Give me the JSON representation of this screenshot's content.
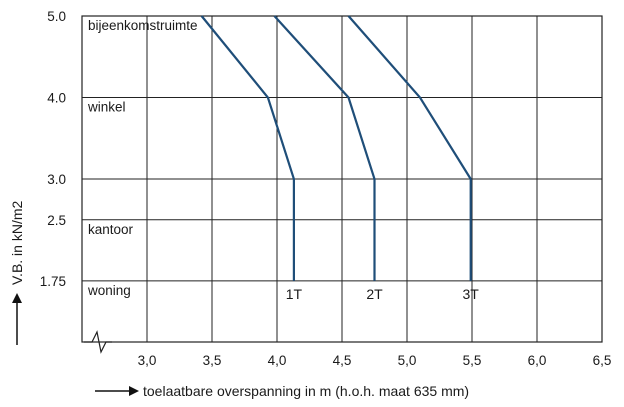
{
  "chart_data": {
    "type": "line",
    "xlabel": "toelaatbare overspanning in m (h.o.h. maat 635 mm)",
    "ylabel": "V.B. in kN/m2",
    "x_ticks": [
      "3,0",
      "3,5",
      "4,0",
      "4,5",
      "5,0",
      "5,5",
      "6,0",
      "6,5"
    ],
    "x_tick_values": [
      3.0,
      3.5,
      4.0,
      4.5,
      5.0,
      5.5,
      6.0,
      6.5
    ],
    "y_ticks": [
      "5.0",
      "4.0",
      "3.0",
      "2.5",
      "1.75"
    ],
    "y_tick_values": [
      5.0,
      4.0,
      3.0,
      2.5,
      1.75
    ],
    "xlim": [
      2.5,
      6.5
    ],
    "ylim": [
      1.0,
      5.0
    ],
    "grid": true,
    "categories": [
      {
        "label": "bijeenkomstruimte",
        "y": 5.0
      },
      {
        "label": "winkel",
        "y": 4.0
      },
      {
        "label": "kantoor",
        "y": 2.5
      },
      {
        "label": "woning",
        "y": 1.75
      }
    ],
    "series": [
      {
        "name": "1T",
        "color": "#1f4e79",
        "x": [
          3.42,
          3.93,
          4.13,
          4.13
        ],
        "y": [
          5.0,
          4.0,
          3.0,
          1.75
        ]
      },
      {
        "name": "2T",
        "color": "#1f4e79",
        "x": [
          3.98,
          4.55,
          4.75,
          4.75
        ],
        "y": [
          5.0,
          4.0,
          3.0,
          1.75
        ]
      },
      {
        "name": "3T",
        "color": "#1f4e79",
        "x": [
          4.55,
          5.1,
          5.49,
          5.49
        ],
        "y": [
          5.0,
          4.0,
          3.0,
          1.75
        ]
      }
    ]
  }
}
